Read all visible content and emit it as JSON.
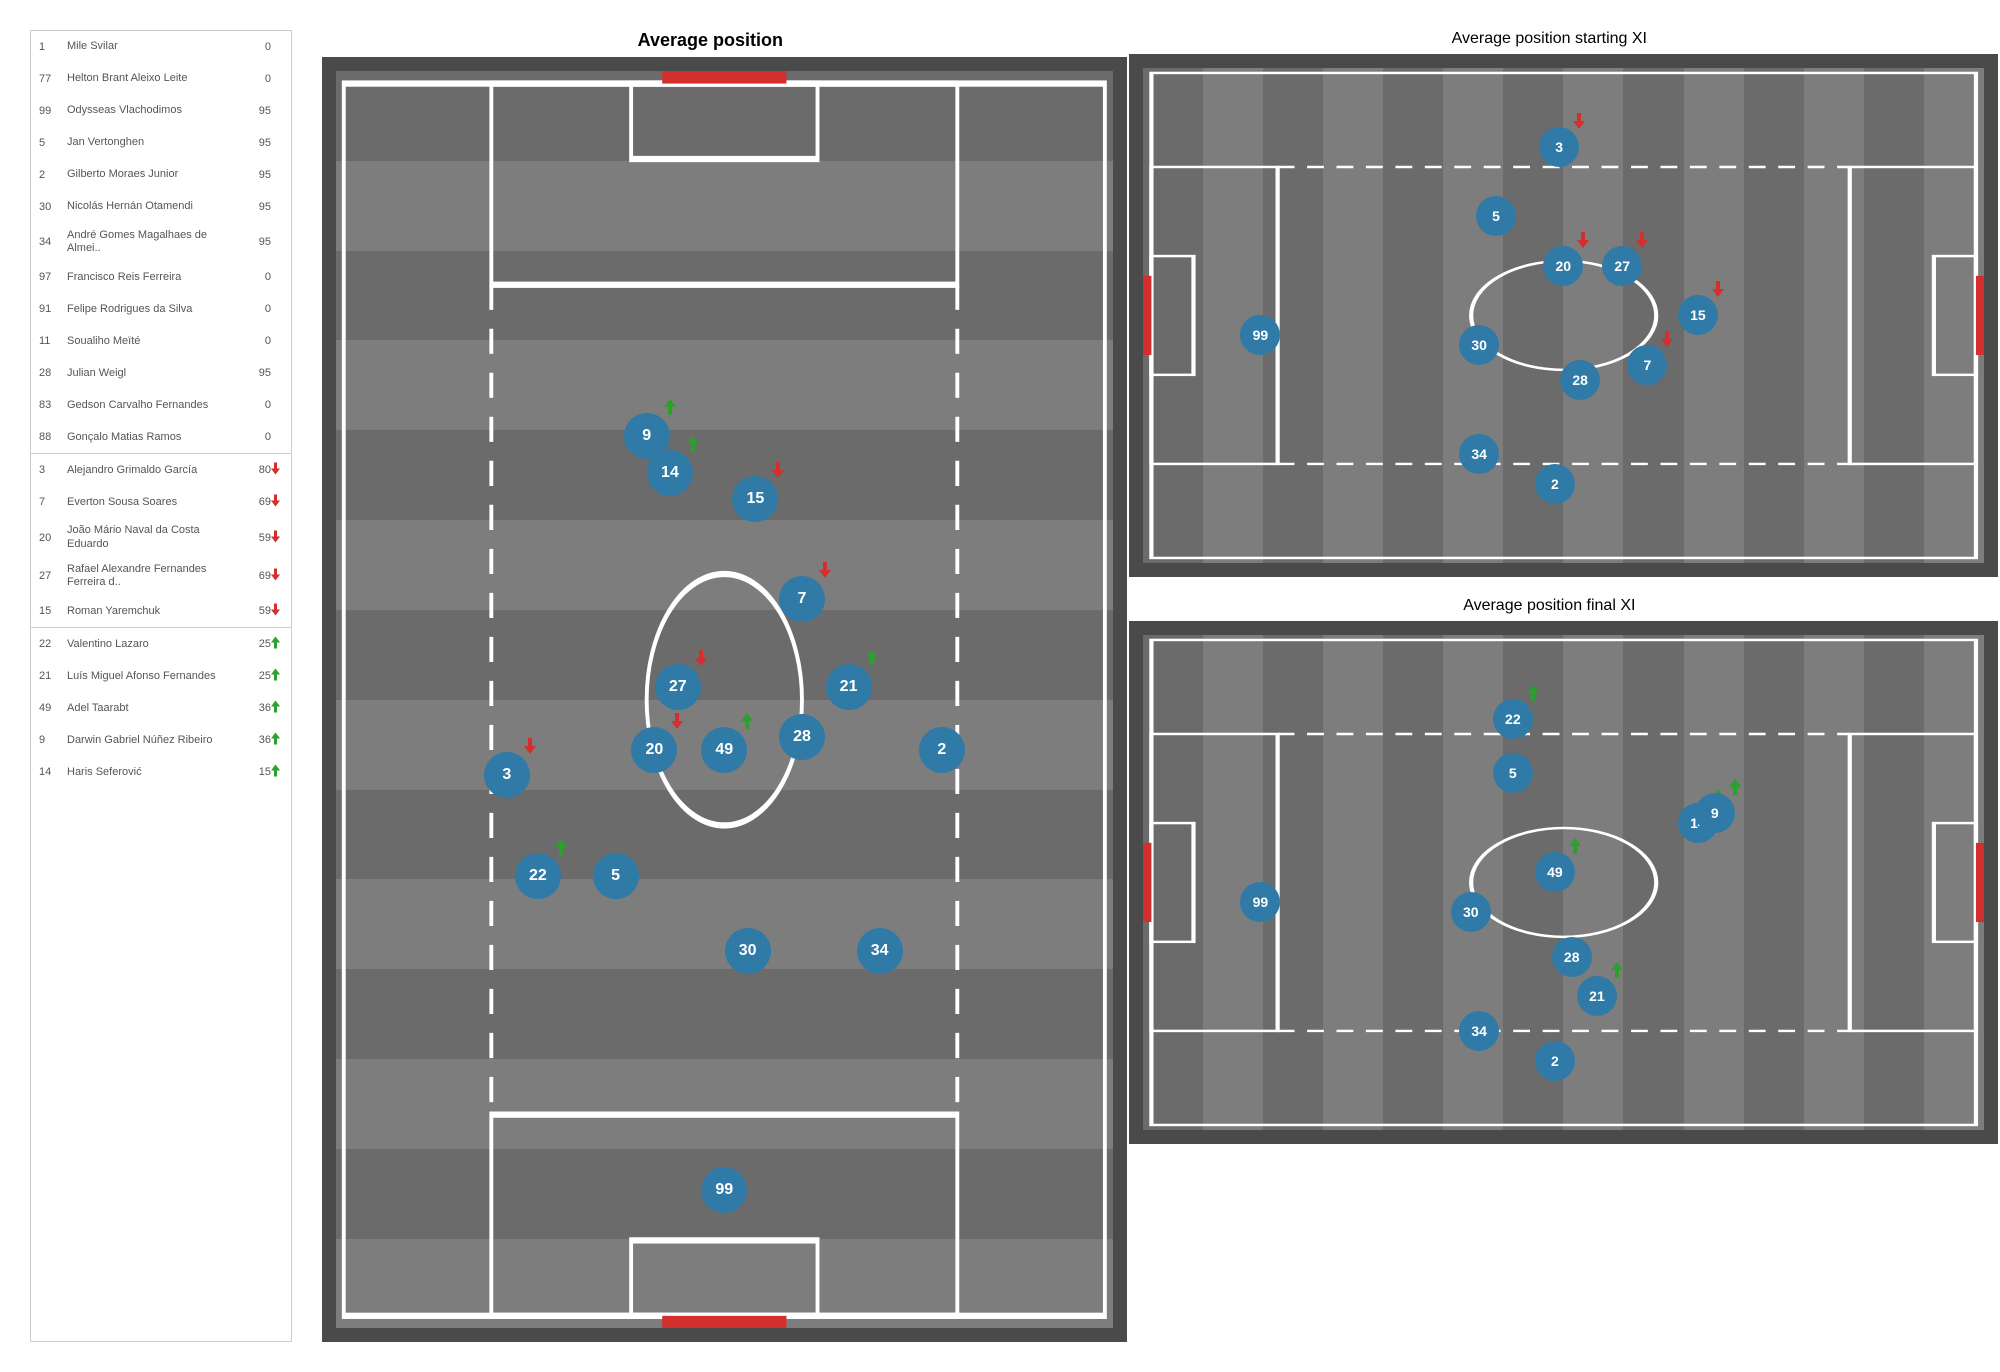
{
  "colors": {
    "marker": "#2f7aa6",
    "pitch_dark": "#6b6b6b",
    "pitch_light": "#7d7d7d",
    "border": "#4a4a4a",
    "line": "#ffffff",
    "goal": "#d32f2f",
    "arrow_up": "#2e9e2e",
    "arrow_down": "#d32f2f"
  },
  "typography": {
    "title_main_size": 18,
    "title_side_size": 16,
    "marker_font_main": 16,
    "marker_font_side": 14,
    "table_font": 11
  },
  "sizes": {
    "marker_main": 46,
    "marker_side": 40
  },
  "table": {
    "groups": [
      {
        "rows": [
          {
            "num": "1",
            "name": "Mile Svilar",
            "min": "0",
            "arrow": null
          },
          {
            "num": "77",
            "name": "Helton Brant Aleixo Leite",
            "min": "0",
            "arrow": null
          },
          {
            "num": "99",
            "name": "Odysseas Vlachodimos",
            "min": "95",
            "arrow": null
          },
          {
            "num": "5",
            "name": "Jan Vertonghen",
            "min": "95",
            "arrow": null
          },
          {
            "num": "2",
            "name": "Gilberto Moraes Junior",
            "min": "95",
            "arrow": null
          },
          {
            "num": "30",
            "name": "Nicolás Hernán Otamendi",
            "min": "95",
            "arrow": null
          },
          {
            "num": "34",
            "name": "André Gomes Magalhaes de Almei..",
            "min": "95",
            "arrow": null
          },
          {
            "num": "97",
            "name": "Francisco Reis Ferreira",
            "min": "0",
            "arrow": null
          },
          {
            "num": "91",
            "name": "Felipe Rodrigues da Silva",
            "min": "0",
            "arrow": null
          },
          {
            "num": "11",
            "name": "Soualiho Meïté",
            "min": "0",
            "arrow": null
          },
          {
            "num": "28",
            "name": "Julian Weigl",
            "min": "95",
            "arrow": null
          },
          {
            "num": "83",
            "name": "Gedson Carvalho Fernandes",
            "min": "0",
            "arrow": null
          },
          {
            "num": "88",
            "name": "Gonçalo Matias Ramos",
            "min": "0",
            "arrow": null
          }
        ]
      },
      {
        "rows": [
          {
            "num": "3",
            "name": "Alejandro Grimaldo García",
            "min": "80",
            "arrow": "down"
          },
          {
            "num": "7",
            "name": "Everton Sousa Soares",
            "min": "69",
            "arrow": "down"
          },
          {
            "num": "20",
            "name": "João Mário Naval da Costa Eduardo",
            "min": "59",
            "arrow": "down"
          },
          {
            "num": "27",
            "name": "Rafael Alexandre Fernandes Ferreira d..",
            "min": "69",
            "arrow": "down"
          },
          {
            "num": "15",
            "name": "Roman Yaremchuk",
            "min": "59",
            "arrow": "down"
          }
        ]
      },
      {
        "rows": [
          {
            "num": "22",
            "name": "Valentino Lazaro",
            "min": "25",
            "arrow": "up"
          },
          {
            "num": "21",
            "name": "Luís Miguel Afonso Fernandes",
            "min": "25",
            "arrow": "up"
          },
          {
            "num": "49",
            "name": "Adel Taarabt",
            "min": "36",
            "arrow": "up"
          },
          {
            "num": "9",
            "name": "Darwin Gabriel Núñez Ribeiro",
            "min": "36",
            "arrow": "up"
          },
          {
            "num": "14",
            "name": "Haris Seferović",
            "min": "15",
            "arrow": "up"
          }
        ]
      }
    ]
  },
  "main": {
    "title": "Average position",
    "orientation": "v",
    "stripes": 14,
    "markers": [
      {
        "n": "9",
        "x": 40,
        "y": 29,
        "arrow": "up"
      },
      {
        "n": "14",
        "x": 43,
        "y": 32,
        "arrow": "up"
      },
      {
        "n": "15",
        "x": 54,
        "y": 34,
        "arrow": "down"
      },
      {
        "n": "7",
        "x": 60,
        "y": 42,
        "arrow": "down"
      },
      {
        "n": "27",
        "x": 44,
        "y": 49,
        "arrow": "down"
      },
      {
        "n": "21",
        "x": 66,
        "y": 49,
        "arrow": "up"
      },
      {
        "n": "28",
        "x": 60,
        "y": 53,
        "arrow": null
      },
      {
        "n": "20",
        "x": 41,
        "y": 54,
        "arrow": "down"
      },
      {
        "n": "49",
        "x": 50,
        "y": 54,
        "arrow": "up"
      },
      {
        "n": "2",
        "x": 78,
        "y": 54,
        "arrow": null
      },
      {
        "n": "3",
        "x": 22,
        "y": 56,
        "arrow": "down"
      },
      {
        "n": "22",
        "x": 26,
        "y": 64,
        "arrow": "up"
      },
      {
        "n": "5",
        "x": 36,
        "y": 64,
        "arrow": null
      },
      {
        "n": "30",
        "x": 53,
        "y": 70,
        "arrow": null
      },
      {
        "n": "34",
        "x": 70,
        "y": 70,
        "arrow": null
      },
      {
        "n": "99",
        "x": 50,
        "y": 89,
        "arrow": null
      }
    ]
  },
  "starting": {
    "title": "Average position starting XI",
    "orientation": "h",
    "stripes": 14,
    "markers": [
      {
        "n": "3",
        "x": 49.5,
        "y": 16,
        "arrow": "down"
      },
      {
        "n": "5",
        "x": 42,
        "y": 30,
        "arrow": null
      },
      {
        "n": "20",
        "x": 50,
        "y": 40,
        "arrow": "down"
      },
      {
        "n": "27",
        "x": 57,
        "y": 40,
        "arrow": "down"
      },
      {
        "n": "15",
        "x": 66,
        "y": 50,
        "arrow": "down"
      },
      {
        "n": "99",
        "x": 14,
        "y": 54,
        "arrow": null
      },
      {
        "n": "30",
        "x": 40,
        "y": 56,
        "arrow": null
      },
      {
        "n": "28",
        "x": 52,
        "y": 63,
        "arrow": null
      },
      {
        "n": "7",
        "x": 60,
        "y": 60,
        "arrow": "down"
      },
      {
        "n": "34",
        "x": 40,
        "y": 78,
        "arrow": null
      },
      {
        "n": "2",
        "x": 49,
        "y": 84,
        "arrow": null
      }
    ]
  },
  "final": {
    "title": "Average position final XI",
    "orientation": "h",
    "stripes": 14,
    "markers": [
      {
        "n": "22",
        "x": 44,
        "y": 17,
        "arrow": "up"
      },
      {
        "n": "5",
        "x": 44,
        "y": 28,
        "arrow": null
      },
      {
        "n": "14",
        "x": 66,
        "y": 38,
        "arrow": "up"
      },
      {
        "n": "9",
        "x": 68,
        "y": 36,
        "arrow": "up"
      },
      {
        "n": "49",
        "x": 49,
        "y": 48,
        "arrow": "up"
      },
      {
        "n": "99",
        "x": 14,
        "y": 54,
        "arrow": null
      },
      {
        "n": "30",
        "x": 39,
        "y": 56,
        "arrow": null
      },
      {
        "n": "28",
        "x": 51,
        "y": 65,
        "arrow": null
      },
      {
        "n": "21",
        "x": 54,
        "y": 73,
        "arrow": "up"
      },
      {
        "n": "34",
        "x": 40,
        "y": 80,
        "arrow": null
      },
      {
        "n": "2",
        "x": 49,
        "y": 86,
        "arrow": null
      }
    ]
  }
}
